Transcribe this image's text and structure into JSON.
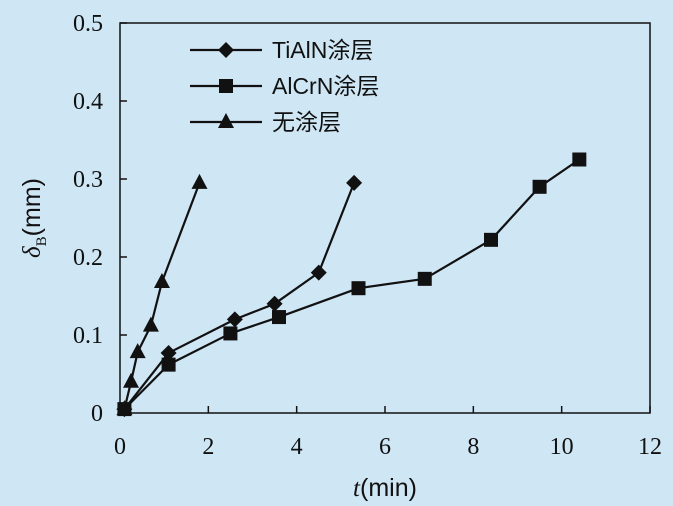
{
  "chart_data": {
    "type": "line",
    "xlabel_var": "t",
    "xlabel_unit": "(min)",
    "ylabel_var": "δ",
    "ylabel_sub": "B",
    "ylabel_unit": "(mm)",
    "xlim": [
      0,
      12
    ],
    "ylim": [
      0,
      0.5
    ],
    "x_ticks": [
      0,
      2,
      4,
      6,
      8,
      10,
      12
    ],
    "y_ticks": [
      0,
      0.1,
      0.2,
      0.3,
      0.4,
      0.5
    ],
    "x_tick_labels": [
      "0",
      "2",
      "4",
      "6",
      "8",
      "10",
      "12"
    ],
    "y_tick_labels": [
      "0",
      "0.1",
      "0.2",
      "0.3",
      "0.4",
      "0.5"
    ],
    "grid": false,
    "legend_position": "top-left",
    "series": [
      {
        "name": "TiAlN涂层",
        "marker": "diamond",
        "x": [
          0.1,
          1.1,
          2.6,
          3.5,
          4.5,
          5.3
        ],
        "y": [
          0.005,
          0.077,
          0.12,
          0.14,
          0.18,
          0.295
        ]
      },
      {
        "name": "AlCrN涂层",
        "marker": "square",
        "x": [
          0.1,
          1.1,
          2.5,
          3.6,
          5.4,
          6.9,
          8.4,
          9.5,
          10.4
        ],
        "y": [
          0.005,
          0.062,
          0.102,
          0.123,
          0.16,
          0.172,
          0.222,
          0.29,
          0.325
        ]
      },
      {
        "name": "无涂层",
        "marker": "triangle",
        "x": [
          0.1,
          0.25,
          0.4,
          0.7,
          0.95,
          1.8
        ],
        "y": [
          0.005,
          0.04,
          0.078,
          0.112,
          0.168,
          0.295
        ]
      }
    ]
  }
}
